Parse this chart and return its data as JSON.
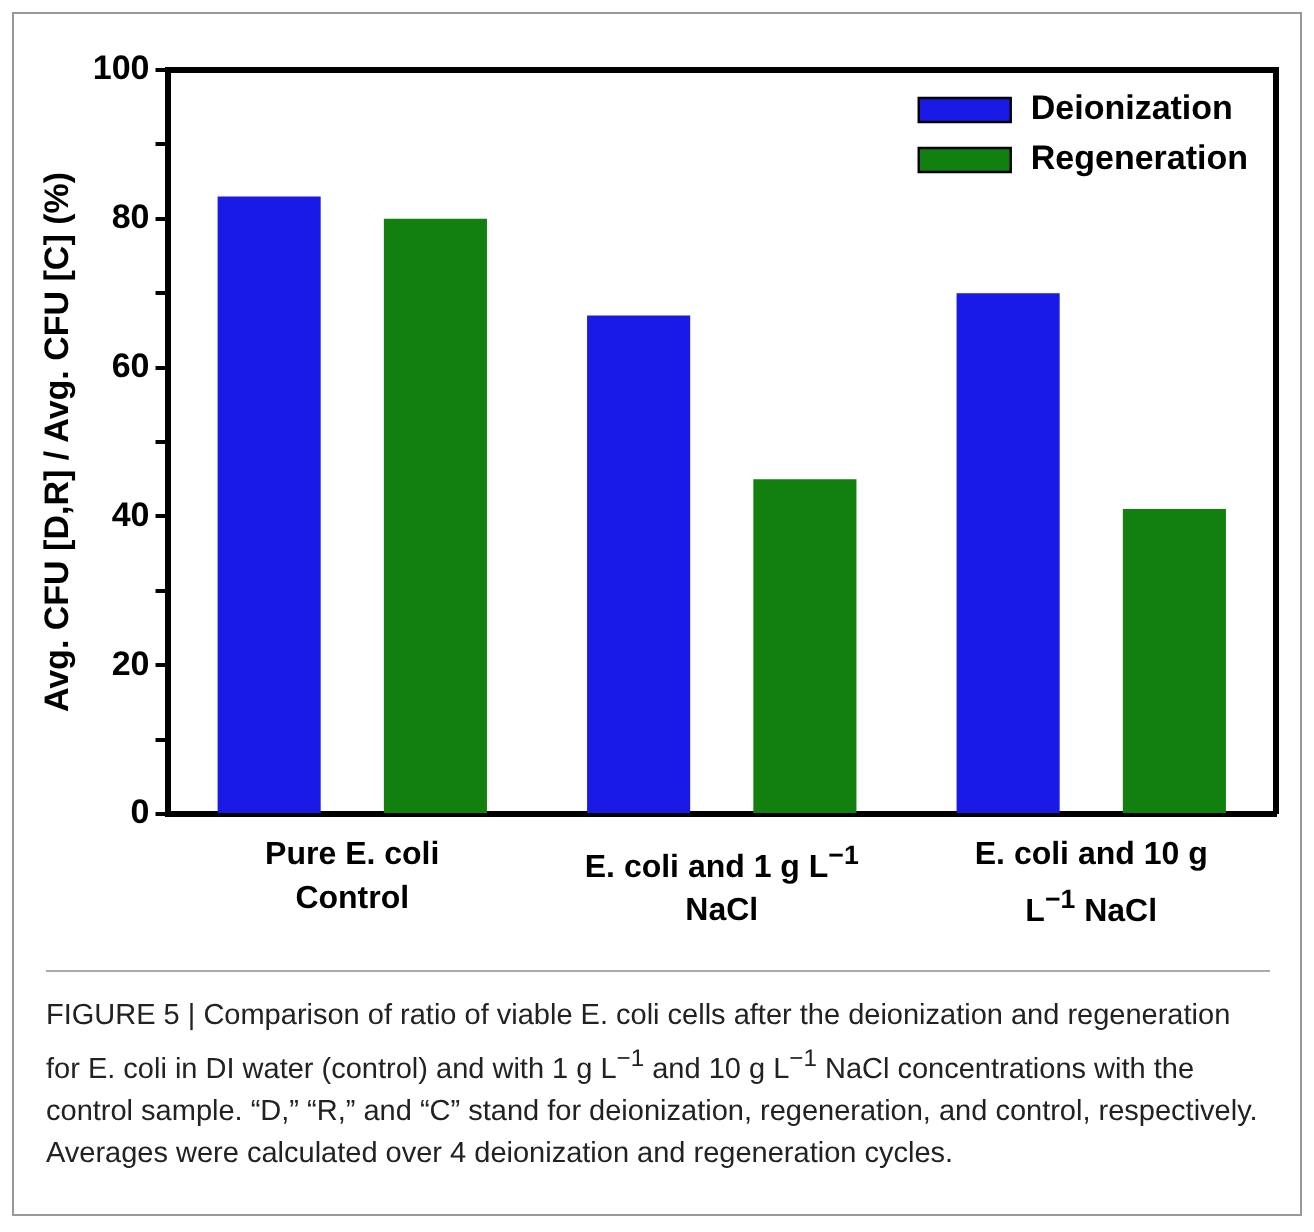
{
  "chart_data": {
    "type": "bar",
    "ylabel": "Avg. CFU [D,R] / Avg. CFU [C] (%)",
    "categories": [
      "Pure E. coli Control",
      "E. coli and 1 g L$^{−1}$ NaCl",
      "E. coli and 10 g L$^{−1}$ NaCl"
    ],
    "series": [
      {
        "name": "Deionization",
        "color": "#1a1ae6",
        "values": [
          83,
          67,
          70
        ]
      },
      {
        "name": "Regeneration",
        "color": "#11800f",
        "values": [
          80,
          45,
          41
        ]
      }
    ],
    "ylim": [
      0,
      100
    ],
    "yticks": [
      0,
      {
        "value": 10,
        "label": null
      },
      20,
      {
        "value": 30,
        "label": null
      },
      40,
      {
        "value": 50,
        "label": null
      },
      60,
      {
        "value": 70,
        "label": null
      },
      80,
      {
        "value": 90,
        "label": null
      },
      100
    ],
    "grid": false,
    "legend": "top right",
    "annotations": [
      "FIGURE 5 | Comparison of ratio of viable E. coli cells after the deionization and regeneration for E. coli in DI water (control) and with 1 g L$^{−1}$ and 10 g L$^{−1}$ NaCl concentrations with the control sample. “D,” “R,” and “C” stand for deionization, regeneration, and control, respectively. Averages were calculated over 4 deionization and regeneration cycles."
    ]
  }
}
